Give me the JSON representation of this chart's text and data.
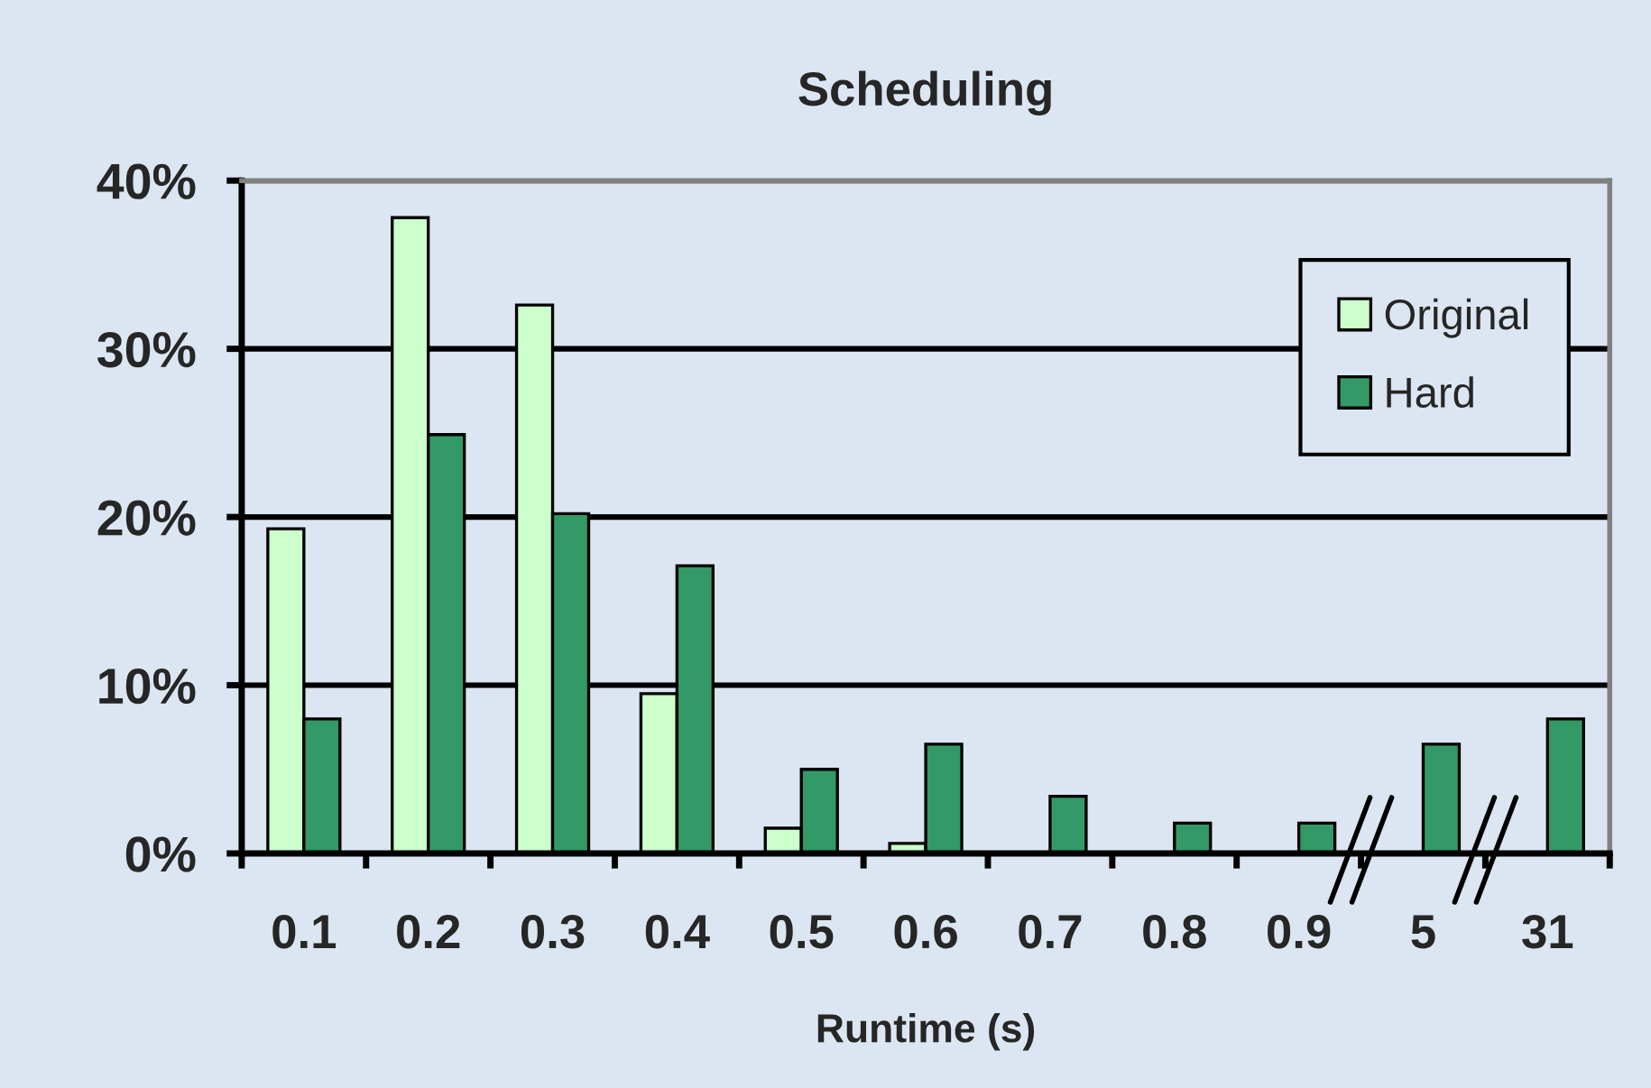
{
  "chart_data": {
    "type": "bar",
    "title": "Scheduling",
    "xlabel": "Runtime (s)",
    "categories": [
      "0.1",
      "0.2",
      "0.3",
      "0.4",
      "0.5",
      "0.6",
      "0.7",
      "0.8",
      "0.9",
      "5",
      "31"
    ],
    "series": [
      {
        "name": "Original",
        "color": "#ccffcc",
        "values": [
          19.3,
          37.8,
          32.6,
          9.5,
          1.5,
          0.6,
          null,
          null,
          null,
          null,
          null
        ]
      },
      {
        "name": "Hard",
        "color": "#339966",
        "values": [
          8.0,
          24.9,
          20.2,
          17.1,
          5.0,
          6.5,
          3.4,
          1.8,
          1.8,
          6.5,
          8.0
        ]
      }
    ],
    "ylim": [
      0,
      40
    ],
    "yticks": [
      {
        "value": 0,
        "label": "0%"
      },
      {
        "value": 10,
        "label": "10%"
      },
      {
        "value": 20,
        "label": "20%"
      },
      {
        "value": 30,
        "label": "30%"
      },
      {
        "value": 40,
        "label": "40%"
      }
    ],
    "grid": "y",
    "legend": "top right"
  }
}
